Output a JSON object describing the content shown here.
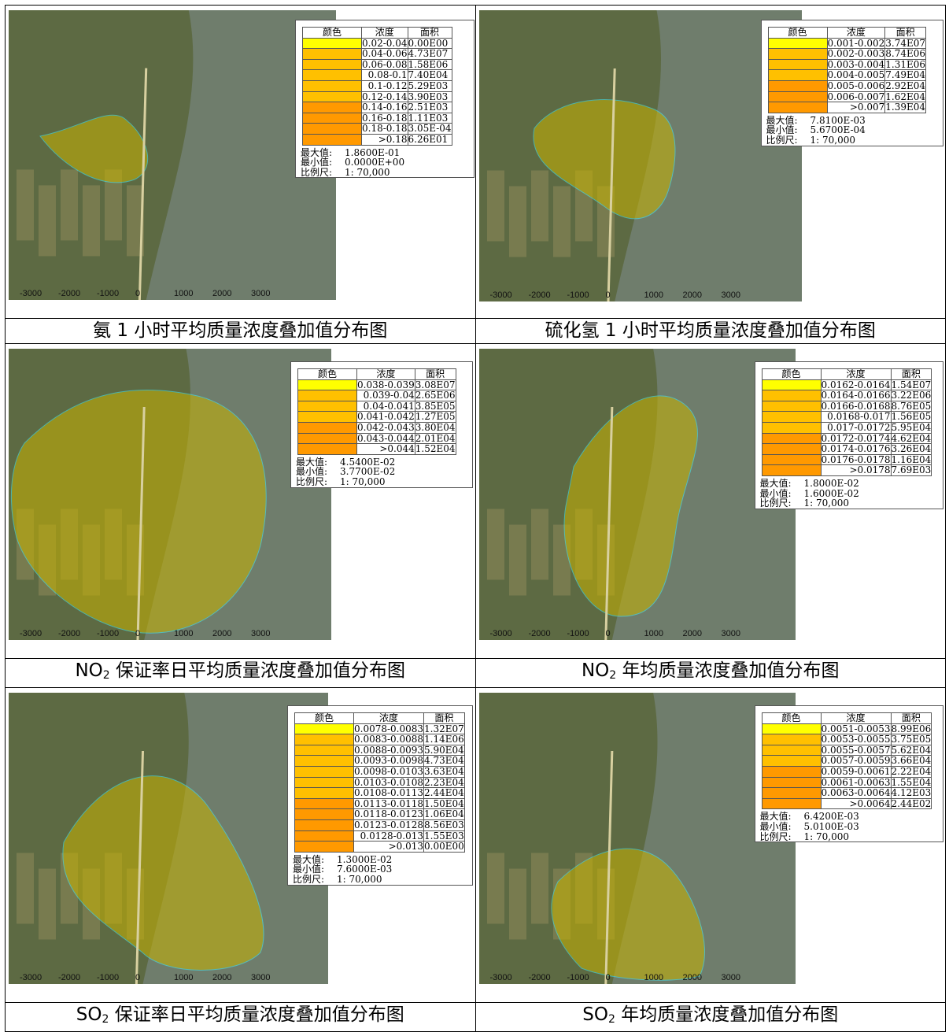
{
  "colors": {
    "yellow": "#ffff00",
    "amber": "#ffc000",
    "orange": "#ff9900",
    "border": "#555555"
  },
  "axis_ticks": [
    "-3000",
    "-2000",
    "-1000",
    "0",
    "1000",
    "2000",
    "3000"
  ],
  "panels": [
    {
      "caption_parts": [
        "氨 1 小时平均质量浓度叠加值分布图"
      ],
      "legend": {
        "headers": [
          "颜色",
          "浓度",
          "面积"
        ],
        "rows": [
          {
            "range": "0.02-0.04",
            "area": "0.00E00",
            "color": "yellow"
          },
          {
            "range": "0.04-0.06",
            "area": "4.73E07",
            "color": "amber"
          },
          {
            "range": "0.06-0.08",
            "area": "1.58E06",
            "color": "amber"
          },
          {
            "range": "0.08-0.1",
            "area": "7.40E04",
            "color": "amber"
          },
          {
            "range": "0.1-0.12",
            "area": "5.29E03",
            "color": "amber"
          },
          {
            "range": "0.12-0.14",
            "area": "3.90E03",
            "color": "amber"
          },
          {
            "range": "0.14-0.16",
            "area": "2.51E03",
            "color": "orange"
          },
          {
            "range": "0.16-0.18",
            "area": "1.11E03",
            "color": "orange"
          },
          {
            "range": "0.18-0.18",
            "area": "3.05E-04",
            "color": "orange"
          },
          {
            "range": ">0.18",
            "area": "6.26E01",
            "color": "orange"
          }
        ],
        "stats": [
          [
            "最大值:",
            "1.8600E-01"
          ],
          [
            "最小值:",
            "0.0000E+00"
          ],
          [
            "比例尺:",
            "1: 70,000"
          ]
        ]
      }
    },
    {
      "caption_parts": [
        "硫化氢 1 小时平均质量浓度叠加值分布图"
      ],
      "legend": {
        "headers": [
          "颜色",
          "浓度",
          "面积"
        ],
        "rows": [
          {
            "range": "0.001-0.002",
            "area": "3.74E07",
            "color": "yellow"
          },
          {
            "range": "0.002-0.003",
            "area": "8.74E06",
            "color": "amber"
          },
          {
            "range": "0.003-0.004",
            "area": "1.31E06",
            "color": "amber"
          },
          {
            "range": "0.004-0.005",
            "area": "7.49E04",
            "color": "amber"
          },
          {
            "range": "0.005-0.006",
            "area": "2.92E04",
            "color": "orange"
          },
          {
            "range": "0.006-0.007",
            "area": "1.62E04",
            "color": "orange"
          },
          {
            "range": ">0.007",
            "area": "1.39E04",
            "color": "orange"
          }
        ],
        "stats": [
          [
            "最大值:",
            "7.8100E-03"
          ],
          [
            "最小值:",
            "5.6700E-04"
          ],
          [
            "比例尺:",
            "1: 70,000"
          ]
        ]
      }
    },
    {
      "caption_parts": [
        "NO",
        "2",
        " 保证率日平均质量浓度叠加值分布图"
      ],
      "legend": {
        "headers": [
          "颜色",
          "浓度",
          "面积"
        ],
        "rows": [
          {
            "range": "0.038-0.039",
            "area": "3.08E07",
            "color": "yellow"
          },
          {
            "range": "0.039-0.04",
            "area": "2.65E06",
            "color": "amber"
          },
          {
            "range": "0.04-0.041",
            "area": "3.85E05",
            "color": "amber"
          },
          {
            "range": "0.041-0.042",
            "area": "1.27E05",
            "color": "amber"
          },
          {
            "range": "0.042-0.043",
            "area": "3.80E04",
            "color": "orange"
          },
          {
            "range": "0.043-0.044",
            "area": "2.01E04",
            "color": "orange"
          },
          {
            "range": ">0.044",
            "area": "1.52E04",
            "color": "orange"
          }
        ],
        "stats": [
          [
            "最大值:",
            "4.5400E-02"
          ],
          [
            "最小值:",
            "3.7700E-02"
          ],
          [
            "比例尺:",
            "1: 70,000"
          ]
        ]
      }
    },
    {
      "caption_parts": [
        "NO",
        "2",
        " 年均质量浓度叠加值分布图"
      ],
      "legend": {
        "headers": [
          "颜色",
          "浓度",
          "面积"
        ],
        "rows": [
          {
            "range": "0.0162-0.0164",
            "area": "1.54E07",
            "color": "yellow"
          },
          {
            "range": "0.0164-0.0166",
            "area": "3.22E06",
            "color": "amber"
          },
          {
            "range": "0.0166-0.0168",
            "area": "8.76E05",
            "color": "amber"
          },
          {
            "range": "0.0168-0.017",
            "area": "1.56E05",
            "color": "amber"
          },
          {
            "range": "0.017-0.0172",
            "area": "5.95E04",
            "color": "amber"
          },
          {
            "range": "0.0172-0.0174",
            "area": "4.62E04",
            "color": "orange"
          },
          {
            "range": "0.0174-0.0176",
            "area": "3.26E04",
            "color": "orange"
          },
          {
            "range": "0.0176-0.0178",
            "area": "1.16E04",
            "color": "orange"
          },
          {
            "range": ">0.0178",
            "area": "7.69E03",
            "color": "orange"
          }
        ],
        "stats": [
          [
            "最大值:",
            "1.8000E-02"
          ],
          [
            "最小值:",
            "1.6000E-02"
          ],
          [
            "比例尺:",
            "1: 70,000"
          ]
        ]
      }
    },
    {
      "caption_parts": [
        "SO",
        "2",
        " 保证率日平均质量浓度叠加值分布图"
      ],
      "legend": {
        "headers": [
          "颜色",
          "浓度",
          "面积"
        ],
        "rows": [
          {
            "range": "0.0078-0.0083",
            "area": "1.32E07",
            "color": "yellow"
          },
          {
            "range": "0.0083-0.0088",
            "area": "1.14E06",
            "color": "amber"
          },
          {
            "range": "0.0088-0.0093",
            "area": "5.90E04",
            "color": "amber"
          },
          {
            "range": "0.0093-0.0098",
            "area": "4.73E04",
            "color": "amber"
          },
          {
            "range": "0.0098-0.0103",
            "area": "3.63E04",
            "color": "amber"
          },
          {
            "range": "0.0103-0.0108",
            "area": "2.23E04",
            "color": "amber"
          },
          {
            "range": "0.0108-0.0113",
            "area": "2.44E04",
            "color": "amber"
          },
          {
            "range": "0.0113-0.0118",
            "area": "1.50E04",
            "color": "orange"
          },
          {
            "range": "0.0118-0.0123",
            "area": "1.06E04",
            "color": "orange"
          },
          {
            "range": "0.0123-0.0128",
            "area": "8.56E03",
            "color": "orange"
          },
          {
            "range": "0.0128-0.013",
            "area": "1.55E03",
            "color": "orange"
          },
          {
            "range": ">0.013",
            "area": "0.00E00",
            "color": "orange"
          }
        ],
        "stats": [
          [
            "最大值:",
            "1.3000E-02"
          ],
          [
            "最小值:",
            "7.6000E-03"
          ],
          [
            "比例尺:",
            "1: 70,000"
          ]
        ]
      }
    },
    {
      "caption_parts": [
        "SO",
        "2",
        " 年均质量浓度叠加值分布图"
      ],
      "legend": {
        "headers": [
          "颜色",
          "浓度",
          "面积"
        ],
        "rows": [
          {
            "range": "0.0051-0.0053",
            "area": "8.99E06",
            "color": "yellow"
          },
          {
            "range": "0.0053-0.0055",
            "area": "3.75E05",
            "color": "amber"
          },
          {
            "range": "0.0055-0.0057",
            "area": "5.62E04",
            "color": "amber"
          },
          {
            "range": "0.0057-0.0059",
            "area": "3.66E04",
            "color": "amber"
          },
          {
            "range": "0.0059-0.0061",
            "area": "2.22E04",
            "color": "orange"
          },
          {
            "range": "0.0061-0.0063",
            "area": "1.55E04",
            "color": "orange"
          },
          {
            "range": "0.0063-0.0064",
            "area": "4.12E03",
            "color": "orange"
          },
          {
            "range": ">0.0064",
            "area": "2.44E02",
            "color": "orange"
          }
        ],
        "stats": [
          [
            "最大值:",
            "6.4200E-03"
          ],
          [
            "最小值:",
            "5.0100E-03"
          ],
          [
            "比例尺:",
            "1: 70,000"
          ]
        ]
      }
    }
  ]
}
